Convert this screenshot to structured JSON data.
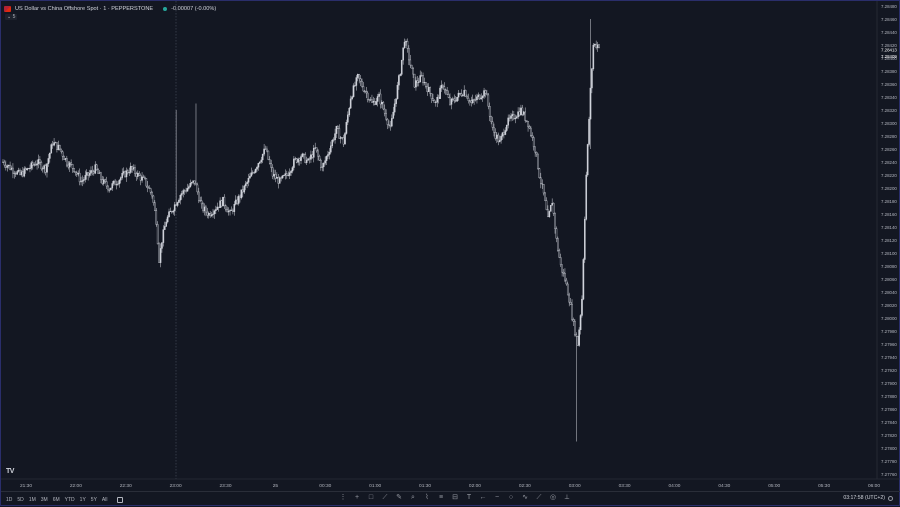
{
  "header": {
    "symbol_title": "US Dollar vs China Offshore Spot · 1 · PEPPERSTONE",
    "change_text": "-0.00007 (-0.00%)",
    "collapse_label": "⌄ 5"
  },
  "colors": {
    "background": "#131722",
    "candle": "#d1d4dc",
    "grid": "#1c2030",
    "axis_text": "#b2b5be"
  },
  "chart_data": {
    "type": "candlestick",
    "title": "US Dollar vs China Offshore Spot · 1 · PEPPERSTONE",
    "ylim": [
      7.2776,
      7.2848
    ],
    "price_ticks": [
      "7.28480",
      "7.28460",
      "7.28440",
      "7.28420",
      "7.28400",
      "7.28380",
      "7.28360",
      "7.28340",
      "7.28320",
      "7.28300",
      "7.28280",
      "7.28260",
      "7.28240",
      "7.28220",
      "7.28200",
      "7.28180",
      "7.28160",
      "7.28140",
      "7.28120",
      "7.28100",
      "7.28080",
      "7.28060",
      "7.28040",
      "7.28020",
      "7.28000",
      "7.27980",
      "7.27960",
      "7.27940",
      "7.27920",
      "7.27900",
      "7.27880",
      "7.27860",
      "7.27840",
      "7.27820",
      "7.27800",
      "7.27780",
      "7.27760"
    ],
    "last_price_labels": [
      "7.28413",
      "7.28409"
    ],
    "time_ticks": [
      "21:30",
      "22:00",
      "22:30",
      "23:00",
      "23:30",
      "25",
      "00:30",
      "01:00",
      "01:30",
      "02:00",
      "02:30",
      "03:00",
      "03:30",
      "04:00",
      "04:30",
      "05:00",
      "05:30",
      "06:00"
    ],
    "price_path": [
      [
        0,
        7.2824
      ],
      [
        6,
        7.2823
      ],
      [
        12,
        7.2822
      ],
      [
        18,
        7.2823
      ],
      [
        24,
        7.2824
      ],
      [
        30,
        7.2823
      ],
      [
        35,
        7.2827
      ],
      [
        40,
        7.2826
      ],
      [
        45,
        7.2824
      ],
      [
        50,
        7.2823
      ],
      [
        55,
        7.2821
      ],
      [
        60,
        7.2822
      ],
      [
        65,
        7.2823
      ],
      [
        70,
        7.2821
      ],
      [
        75,
        7.282
      ],
      [
        80,
        7.2821
      ],
      [
        85,
        7.2822
      ],
      [
        90,
        7.2823
      ],
      [
        95,
        7.2822
      ],
      [
        100,
        7.2821
      ],
      [
        105,
        7.2819
      ],
      [
        108,
        7.2815
      ],
      [
        110,
        7.2809
      ],
      [
        112,
        7.2812
      ],
      [
        115,
        7.2815
      ],
      [
        120,
        7.2817
      ],
      [
        125,
        7.2819
      ],
      [
        130,
        7.282
      ],
      [
        135,
        7.2821
      ],
      [
        140,
        7.2817
      ],
      [
        145,
        7.2816
      ],
      [
        150,
        7.2817
      ],
      [
        155,
        7.2818
      ],
      [
        160,
        7.2816
      ],
      [
        165,
        7.2818
      ],
      [
        170,
        7.282
      ],
      [
        175,
        7.2822
      ],
      [
        180,
        7.2824
      ],
      [
        185,
        7.2826
      ],
      [
        190,
        7.2822
      ],
      [
        195,
        7.2821
      ],
      [
        200,
        7.2822
      ],
      [
        205,
        7.2824
      ],
      [
        210,
        7.2825
      ],
      [
        215,
        7.2824
      ],
      [
        220,
        7.2826
      ],
      [
        225,
        7.2823
      ],
      [
        230,
        7.2826
      ],
      [
        235,
        7.2829
      ],
      [
        240,
        7.2827
      ],
      [
        245,
        7.2834
      ],
      [
        250,
        7.2837
      ],
      [
        255,
        7.2835
      ],
      [
        260,
        7.2833
      ],
      [
        265,
        7.2834
      ],
      [
        270,
        7.2831
      ],
      [
        273,
        7.2829
      ],
      [
        276,
        7.2833
      ],
      [
        280,
        7.2838
      ],
      [
        283,
        7.2843
      ],
      [
        286,
        7.284
      ],
      [
        290,
        7.2836
      ],
      [
        295,
        7.2837
      ],
      [
        300,
        7.2835
      ],
      [
        305,
        7.2833
      ],
      [
        310,
        7.2836
      ],
      [
        315,
        7.2833
      ],
      [
        320,
        7.2834
      ],
      [
        325,
        7.2835
      ],
      [
        330,
        7.2833
      ],
      [
        335,
        7.2834
      ],
      [
        340,
        7.2835
      ],
      [
        345,
        7.2829
      ],
      [
        350,
        7.2827
      ],
      [
        355,
        7.283
      ],
      [
        360,
        7.2831
      ],
      [
        365,
        7.2832
      ],
      [
        370,
        7.283
      ],
      [
        375,
        7.2826
      ],
      [
        378,
        7.2822
      ],
      [
        381,
        7.2819
      ],
      [
        384,
        7.2815
      ],
      [
        387,
        7.2818
      ],
      [
        390,
        7.2812
      ],
      [
        393,
        7.2808
      ],
      [
        396,
        7.2806
      ],
      [
        399,
        7.2803
      ],
      [
        402,
        7.2799
      ],
      [
        405,
        7.2796
      ],
      [
        408,
        7.2803
      ],
      [
        411,
        7.2822
      ],
      [
        414,
        7.2835
      ],
      [
        416,
        7.2842
      ]
    ],
    "chart_x_span": [
      0,
      420
    ]
  },
  "bottom_bar": {
    "ranges": [
      "1D",
      "5D",
      "1M",
      "3M",
      "6M",
      "YTD",
      "1Y",
      "5Y",
      "All"
    ],
    "clock": "03:17:58 (UTC+2)"
  },
  "toolbar_icons": [
    "cursor-icon",
    "crosshair-icon",
    "rectangle-icon",
    "pen-icon",
    "brush-icon",
    "zoom-icon",
    "pattern-icon",
    "fib-icon",
    "measure-icon",
    "text-icon",
    "arrow-left-icon",
    "minus-icon",
    "circle-icon",
    "path-icon",
    "line-icon",
    "pin-icon",
    "ruler-icon"
  ]
}
